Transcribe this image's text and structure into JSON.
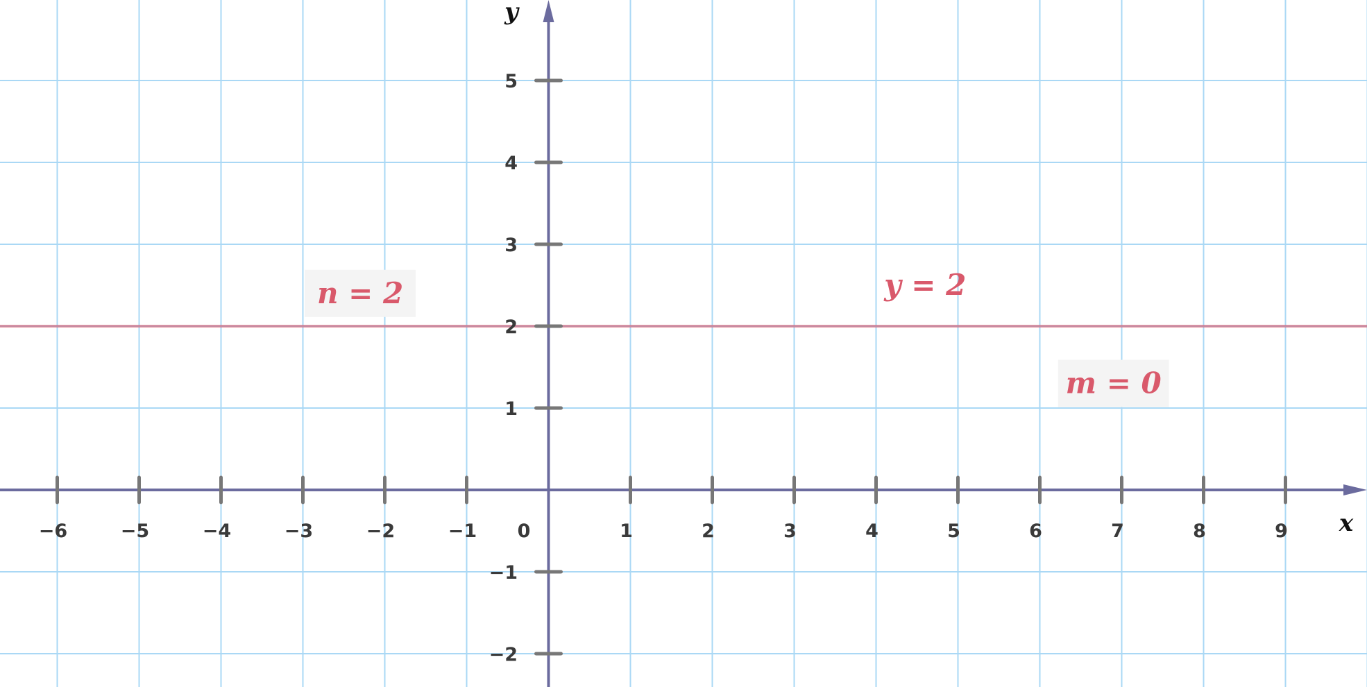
{
  "chart_data": {
    "type": "line",
    "xlabel": "x",
    "ylabel": "y",
    "xlim": [
      -6.7,
      10
    ],
    "ylim": [
      -2.4,
      6
    ],
    "x_ticks": [
      -6,
      -5,
      -4,
      -3,
      -2,
      -1,
      1,
      2,
      3,
      4,
      5,
      6,
      7,
      8,
      9
    ],
    "y_ticks": [
      -2,
      -1,
      1,
      2,
      3,
      4,
      5
    ],
    "origin_label": "0",
    "grid": true,
    "series": [
      {
        "equation": "y = 2",
        "slope": 0,
        "intercept": 2,
        "color": "#d9596b"
      }
    ],
    "annotations": [
      {
        "text_var": "n",
        "text_value": "2",
        "x": -2.3,
        "y": 2.4
      },
      {
        "text_var": "y",
        "text_value": "2",
        "x": 4.6,
        "y": 2.5
      },
      {
        "text_var": "m",
        "text_value": "0",
        "x": 6.9,
        "y": 1.3
      }
    ],
    "colors": {
      "grid": "#aad8f5",
      "axis": "#6b6b9e",
      "tick": "#777777",
      "line": "#d9596b",
      "label_bg": "#f4f4f4"
    }
  }
}
